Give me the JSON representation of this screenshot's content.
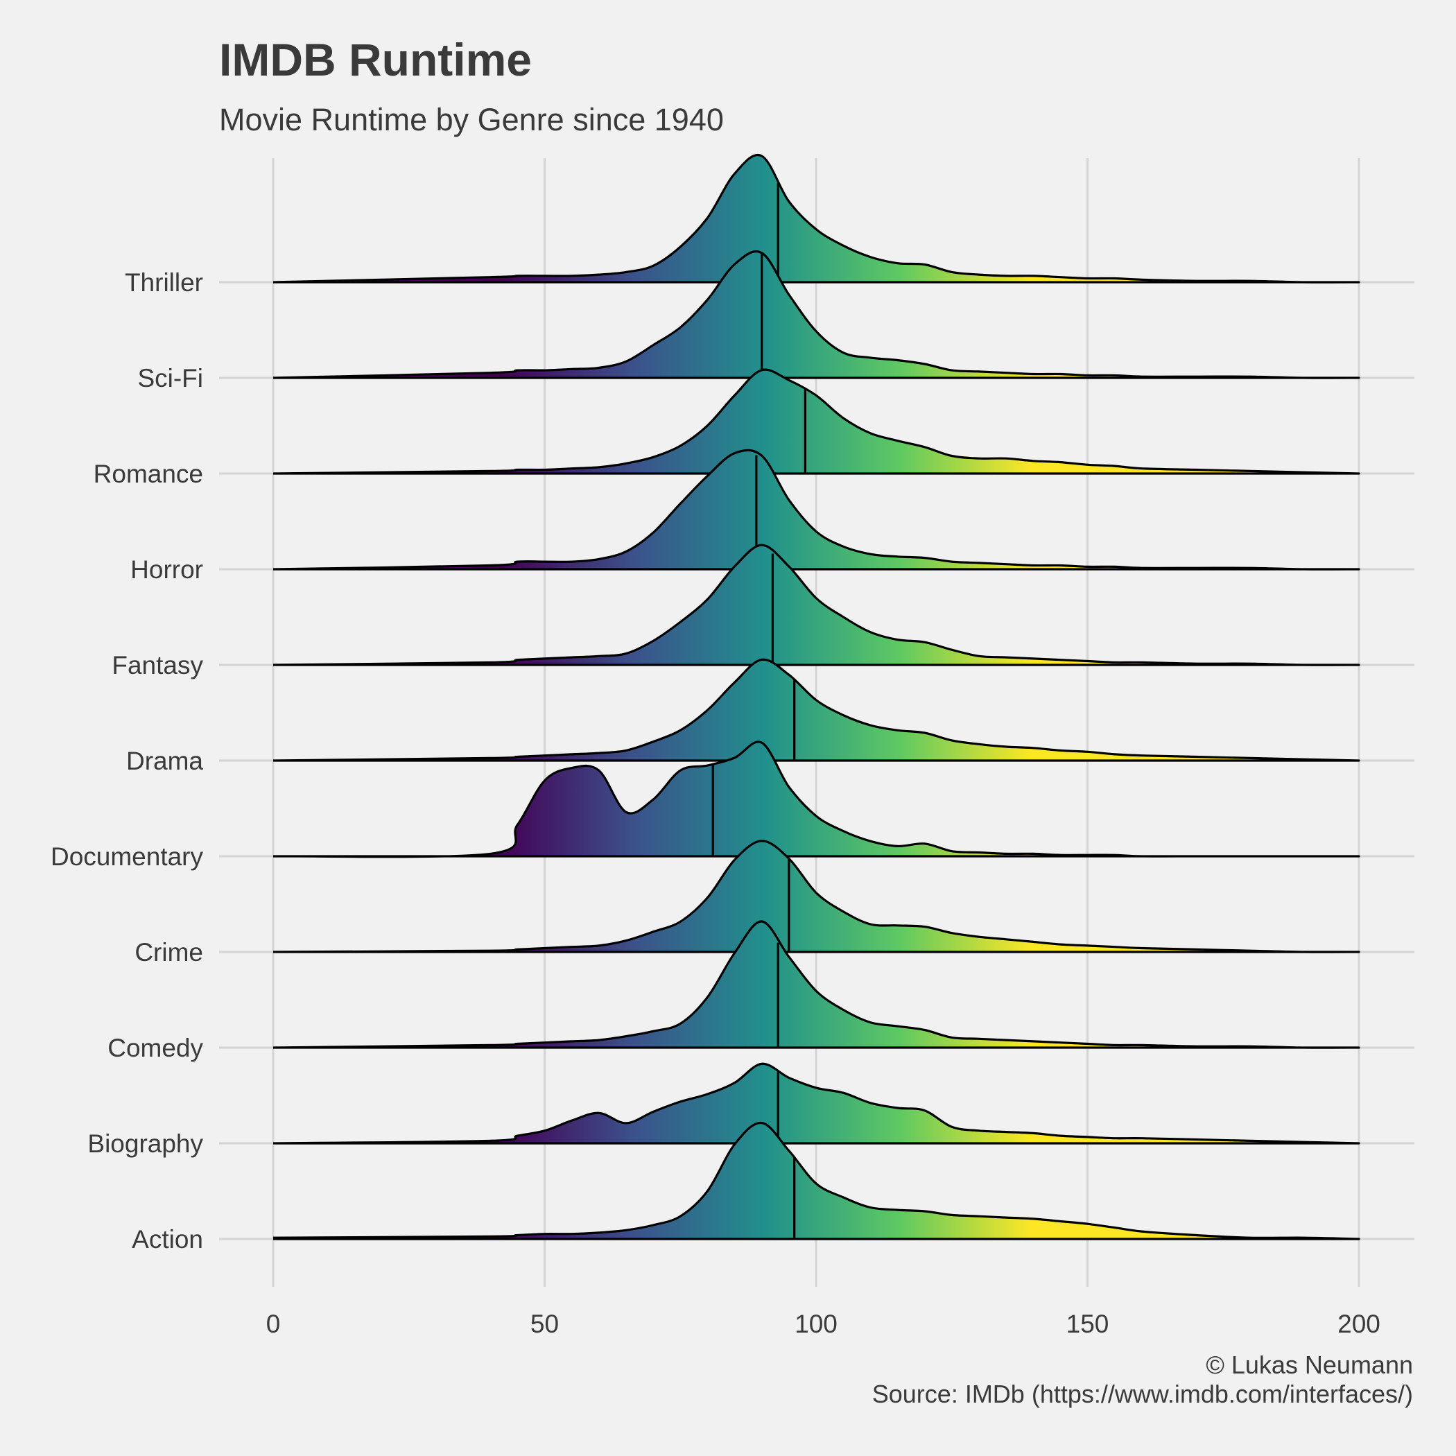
{
  "title": "IMDB Runtime",
  "subtitle": "Movie Runtime by Genre since 1940",
  "caption": {
    "line1": "© Lukas Neumann",
    "line2": "Source: IMDb (https://www.imdb.com/interfaces/)"
  },
  "chart_data": {
    "type": "ridgeline",
    "title": "IMDB Runtime",
    "subtitle": "Movie Runtime by Genre since 1940",
    "xlabel": "",
    "ylabel": "",
    "xlim": [
      0,
      200
    ],
    "x_ticks": [
      0,
      50,
      100,
      150,
      200
    ],
    "grid": true,
    "color_scale": "viridis",
    "colors": [
      "#440154",
      "#3b528b",
      "#21918c",
      "#5ec962",
      "#fde725"
    ],
    "categories": [
      "Action",
      "Biography",
      "Comedy",
      "Crime",
      "Documentary",
      "Drama",
      "Fantasy",
      "Horror",
      "Romance",
      "Sci-Fi",
      "Thriller"
    ],
    "relative_density_points": [
      0,
      40,
      45,
      50,
      55,
      60,
      65,
      70,
      75,
      80,
      85,
      90,
      95,
      100,
      105,
      110,
      115,
      120,
      125,
      130,
      135,
      140,
      145,
      150,
      155,
      160,
      170,
      180,
      190,
      200
    ],
    "series": [
      {
        "name": "Action",
        "median": 96,
        "density": [
          0.01,
          0.02,
          0.03,
          0.04,
          0.04,
          0.05,
          0.07,
          0.11,
          0.18,
          0.38,
          0.75,
          0.92,
          0.7,
          0.44,
          0.33,
          0.25,
          0.23,
          0.22,
          0.19,
          0.18,
          0.17,
          0.16,
          0.14,
          0.12,
          0.09,
          0.06,
          0.03,
          0.01,
          0.01,
          0
        ]
      },
      {
        "name": "Biography",
        "median": 93,
        "density": [
          0,
          0.02,
          0.06,
          0.1,
          0.18,
          0.24,
          0.16,
          0.25,
          0.33,
          0.39,
          0.48,
          0.63,
          0.52,
          0.44,
          0.4,
          0.32,
          0.28,
          0.26,
          0.13,
          0.1,
          0.09,
          0.08,
          0.06,
          0.05,
          0.04,
          0.04,
          0.03,
          0.02,
          0.01,
          0
        ]
      },
      {
        "name": "Comedy",
        "median": 93,
        "density": [
          0,
          0.02,
          0.03,
          0.04,
          0.05,
          0.06,
          0.09,
          0.13,
          0.19,
          0.4,
          0.75,
          1.0,
          0.72,
          0.45,
          0.3,
          0.2,
          0.17,
          0.14,
          0.08,
          0.07,
          0.06,
          0.05,
          0.04,
          0.03,
          0.02,
          0.02,
          0.01,
          0.01,
          0,
          0
        ]
      },
      {
        "name": "Crime",
        "median": 95,
        "density": [
          0,
          0.01,
          0.02,
          0.03,
          0.04,
          0.05,
          0.09,
          0.16,
          0.24,
          0.43,
          0.73,
          0.88,
          0.74,
          0.47,
          0.32,
          0.22,
          0.21,
          0.2,
          0.15,
          0.12,
          0.1,
          0.08,
          0.06,
          0.05,
          0.04,
          0.03,
          0.02,
          0.01,
          0,
          0
        ]
      },
      {
        "name": "Documentary",
        "median": 81,
        "density": [
          0,
          0.02,
          0.25,
          0.6,
          0.7,
          0.68,
          0.35,
          0.45,
          0.68,
          0.72,
          0.78,
          0.9,
          0.55,
          0.32,
          0.2,
          0.12,
          0.08,
          0.1,
          0.04,
          0.03,
          0.02,
          0.02,
          0.01,
          0.01,
          0.01,
          0,
          0,
          0,
          0,
          0
        ]
      },
      {
        "name": "Drama",
        "median": 96,
        "density": [
          0,
          0.02,
          0.03,
          0.04,
          0.05,
          0.06,
          0.08,
          0.15,
          0.24,
          0.4,
          0.62,
          0.8,
          0.68,
          0.48,
          0.36,
          0.28,
          0.24,
          0.22,
          0.16,
          0.13,
          0.11,
          0.1,
          0.08,
          0.07,
          0.05,
          0.04,
          0.03,
          0.02,
          0.01,
          0
        ]
      },
      {
        "name": "Fantasy",
        "median": 92,
        "density": [
          0,
          0.02,
          0.04,
          0.05,
          0.06,
          0.07,
          0.09,
          0.19,
          0.34,
          0.52,
          0.78,
          0.95,
          0.78,
          0.53,
          0.38,
          0.26,
          0.2,
          0.18,
          0.12,
          0.07,
          0.06,
          0.05,
          0.04,
          0.03,
          0.02,
          0.02,
          0.01,
          0.01,
          0,
          0
        ]
      },
      {
        "name": "Horror",
        "median": 89,
        "density": [
          0,
          0.03,
          0.06,
          0.06,
          0.06,
          0.08,
          0.14,
          0.29,
          0.52,
          0.74,
          0.92,
          0.9,
          0.55,
          0.3,
          0.18,
          0.12,
          0.1,
          0.09,
          0.06,
          0.05,
          0.04,
          0.03,
          0.03,
          0.02,
          0.02,
          0.01,
          0.01,
          0.01,
          0,
          0
        ]
      },
      {
        "name": "Romance",
        "median": 98,
        "density": [
          0,
          0.02,
          0.03,
          0.03,
          0.04,
          0.05,
          0.08,
          0.13,
          0.22,
          0.38,
          0.62,
          0.82,
          0.74,
          0.62,
          0.44,
          0.32,
          0.26,
          0.21,
          0.14,
          0.12,
          0.12,
          0.1,
          0.09,
          0.07,
          0.06,
          0.04,
          0.03,
          0.02,
          0.01,
          0
        ]
      },
      {
        "name": "Sci-Fi",
        "median": 90,
        "density": [
          0,
          0.04,
          0.06,
          0.06,
          0.07,
          0.08,
          0.13,
          0.26,
          0.4,
          0.62,
          0.9,
          0.99,
          0.66,
          0.37,
          0.2,
          0.16,
          0.14,
          0.11,
          0.06,
          0.05,
          0.04,
          0.03,
          0.03,
          0.02,
          0.02,
          0.01,
          0.01,
          0.01,
          0,
          0
        ]
      },
      {
        "name": "Thriller",
        "median": 93,
        "density": [
          0,
          0.04,
          0.05,
          0.05,
          0.05,
          0.06,
          0.08,
          0.13,
          0.28,
          0.51,
          0.86,
          1.0,
          0.64,
          0.42,
          0.29,
          0.2,
          0.15,
          0.14,
          0.08,
          0.06,
          0.05,
          0.05,
          0.04,
          0.03,
          0.03,
          0.02,
          0.01,
          0.01,
          0,
          0
        ]
      }
    ]
  }
}
